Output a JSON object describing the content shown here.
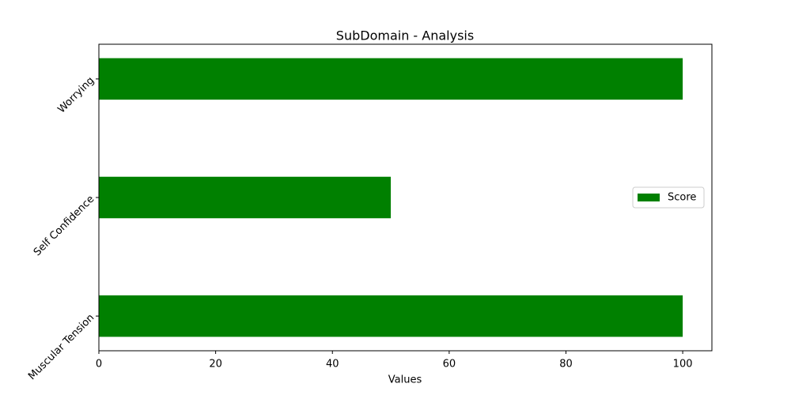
{
  "chart_data": {
    "type": "barh",
    "title": "SubDomain - Analysis",
    "x_label": "Values",
    "categories": [
      "Muscular Tension",
      "Self Confidence",
      "Worrying"
    ],
    "series": [
      {
        "name": "Score",
        "color": "#008000",
        "values": [
          100,
          50,
          100
        ]
      }
    ],
    "xlim": [
      0,
      105
    ],
    "xticks": [
      0,
      20,
      40,
      60,
      80,
      100
    ],
    "grid": false,
    "legend": "center right"
  }
}
